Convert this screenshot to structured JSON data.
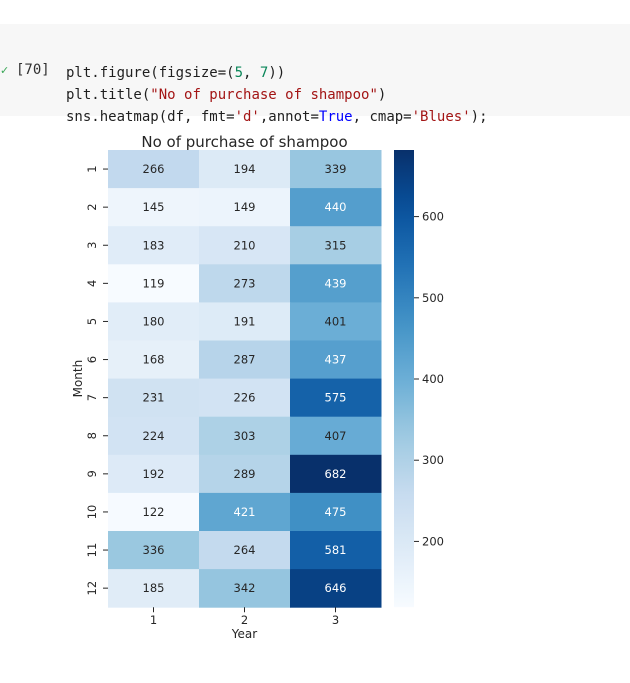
{
  "cell": {
    "execution_count": "[70]",
    "status_icon": "check-icon",
    "code_lines": [
      [
        {
          "t": "plt.figure(figsize=("
        },
        {
          "t": "5",
          "c": "num"
        },
        {
          "t": ", "
        },
        {
          "t": "7",
          "c": "num"
        },
        {
          "t": "))"
        }
      ],
      [
        {
          "t": "plt.title("
        },
        {
          "t": "\"No of purchase of shampoo\"",
          "c": "str"
        },
        {
          "t": ")"
        }
      ],
      [
        {
          "t": "sns.heatmap(df, fmt="
        },
        {
          "t": "'d'",
          "c": "str"
        },
        {
          "t": ",annot="
        },
        {
          "t": "True",
          "c": "kw"
        },
        {
          "t": ", cmap="
        },
        {
          "t": "'Blues'",
          "c": "str"
        },
        {
          "t": ");"
        }
      ]
    ]
  },
  "chart_data": {
    "type": "heatmap",
    "title": "No of purchase of shampoo",
    "xlabel": "Year",
    "ylabel": "Month",
    "x_categories": [
      "1",
      "2",
      "3"
    ],
    "y_categories": [
      "1",
      "2",
      "3",
      "4",
      "5",
      "6",
      "7",
      "8",
      "9",
      "10",
      "11",
      "12"
    ],
    "values": [
      [
        266,
        194,
        339
      ],
      [
        145,
        149,
        440
      ],
      [
        183,
        210,
        315
      ],
      [
        119,
        273,
        439
      ],
      [
        180,
        191,
        401
      ],
      [
        168,
        287,
        437
      ],
      [
        231,
        226,
        575
      ],
      [
        224,
        303,
        407
      ],
      [
        192,
        289,
        682
      ],
      [
        122,
        421,
        475
      ],
      [
        336,
        264,
        581
      ],
      [
        185,
        342,
        646
      ]
    ],
    "colormap": "Blues",
    "colorbar": {
      "range": [
        119,
        682
      ],
      "ticks": [
        200,
        300,
        400,
        500,
        600
      ]
    },
    "annotations": true
  }
}
